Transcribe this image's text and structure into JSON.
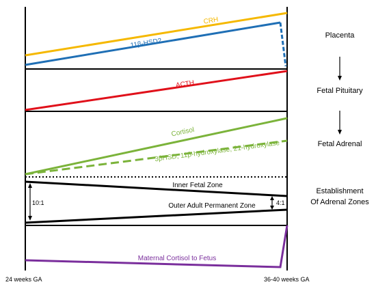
{
  "lines": {
    "crh": {
      "label": "CRH",
      "color": "#F5B800"
    },
    "hsd2": {
      "label": "11β-HSD2",
      "color": "#1F6FB5"
    },
    "acth": {
      "label": "ACTH",
      "color": "#E0101A"
    },
    "cortisol": {
      "label": "Cortisol",
      "color": "#7BB33A"
    },
    "enzymes": {
      "label": "3βHSD, 11β-hydroxylase, 21-hydroxylase",
      "color": "#7BB33A"
    },
    "inner_zone": {
      "label": "Inner Fetal Zone",
      "color": "#000000"
    },
    "outer_zone": {
      "label": "Outer Adult Permanent Zone",
      "color": "#000000"
    },
    "maternal": {
      "label": "Maternal Cortisol to Fetus",
      "color": "#7A2E9C"
    }
  },
  "ratios": {
    "start": "10:1",
    "end": "4:1"
  },
  "stages": {
    "placenta": "Placenta",
    "fetal_pituitary": "Fetal Pituitary",
    "fetal_adrenal": "Fetal Adrenal",
    "zones_line1": "Establishment",
    "zones_line2": "Of Adrenal Zones"
  },
  "axis": {
    "start": "24 weeks GA",
    "end": "36-40 weeks GA"
  }
}
